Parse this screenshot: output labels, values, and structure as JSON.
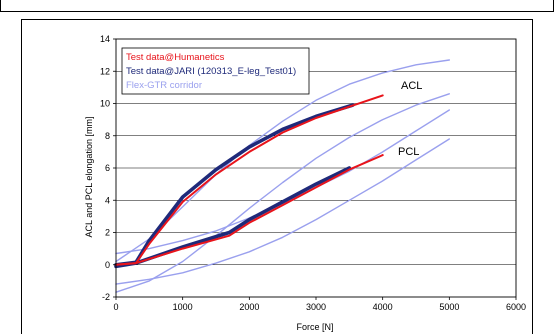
{
  "chart_data": {
    "type": "line",
    "title": "",
    "xlabel": "Force [N]",
    "ylabel": "ACL and PCL elongation [mm]",
    "xlim": [
      0,
      6000
    ],
    "ylim": [
      -2,
      14
    ],
    "xticks": [
      "0",
      "1000",
      "2000",
      "3000",
      "4000",
      "5000",
      "6000"
    ],
    "yticks": [
      "-2",
      "0",
      "2",
      "4",
      "6",
      "8",
      "10",
      "12",
      "14"
    ],
    "grid": "horizontal",
    "legend_position": "top-left",
    "legend": {
      "humanetics": "Test data@Humanetics",
      "jari": "Test data@JARI (120313_E-leg_Test01)",
      "corridor": "Flex-GTR corridor"
    },
    "annotations": {
      "acl": "ACL",
      "pcl": "PCL"
    },
    "colors": {
      "humanetics": "#e8141b",
      "jari": "#1f2a7a",
      "corridor": "#9aa0ee"
    },
    "series": [
      {
        "key": "acl_corridor_upper",
        "group": "corridor",
        "x": [
          0,
          500,
          1000,
          1500,
          2000,
          2500,
          3000,
          3500,
          4000,
          4500,
          5000
        ],
        "y": [
          0.2,
          1.6,
          3.6,
          5.6,
          7.4,
          8.9,
          10.2,
          11.2,
          11.9,
          12.4,
          12.7
        ]
      },
      {
        "key": "acl_corridor_lower",
        "group": "corridor",
        "x": [
          0,
          500,
          1000,
          1500,
          2000,
          2500,
          3000,
          3500,
          4000,
          4500,
          5000
        ],
        "y": [
          -1.7,
          -1.0,
          0.2,
          1.8,
          3.5,
          5.1,
          6.6,
          7.9,
          9.0,
          9.9,
          10.6
        ]
      },
      {
        "key": "pcl_corridor_upper",
        "group": "corridor",
        "x": [
          0,
          500,
          1000,
          1500,
          2000,
          2500,
          3000,
          3500,
          4000,
          4500,
          5000
        ],
        "y": [
          0.7,
          1.0,
          1.5,
          2.1,
          2.9,
          3.8,
          4.8,
          5.8,
          7.0,
          8.3,
          9.6
        ]
      },
      {
        "key": "pcl_corridor_lower",
        "group": "corridor",
        "x": [
          0,
          500,
          1000,
          1500,
          2000,
          2500,
          3000,
          3500,
          4000,
          4500,
          5000
        ],
        "y": [
          -1.2,
          -0.9,
          -0.5,
          0.1,
          0.8,
          1.7,
          2.8,
          4.0,
          5.2,
          6.5,
          7.8
        ]
      },
      {
        "key": "acl_humanetics",
        "group": "humanetics",
        "x": [
          0,
          300,
          500,
          1000,
          1500,
          2000,
          2500,
          3000,
          3500,
          4000
        ],
        "y": [
          0,
          0.1,
          1.3,
          3.9,
          5.6,
          7.0,
          8.2,
          9.1,
          9.8,
          10.5
        ]
      },
      {
        "key": "acl_jari",
        "group": "jari",
        "x": [
          0,
          300,
          500,
          1000,
          1500,
          2000,
          2500,
          3000,
          3550
        ],
        "y": [
          0,
          0.15,
          1.5,
          4.2,
          5.9,
          7.3,
          8.4,
          9.2,
          9.9
        ]
      },
      {
        "key": "pcl_humanetics",
        "group": "humanetics",
        "x": [
          0,
          300,
          1000,
          1700,
          2000,
          2500,
          3000,
          3500,
          4000
        ],
        "y": [
          0,
          0.1,
          1.0,
          1.8,
          2.6,
          3.7,
          4.8,
          5.9,
          6.8
        ]
      },
      {
        "key": "pcl_jari",
        "group": "jari",
        "x": [
          0,
          300,
          1000,
          1700,
          2000,
          2500,
          3000,
          3500
        ],
        "y": [
          -0.1,
          0.1,
          1.1,
          2.0,
          2.8,
          3.9,
          5.0,
          6.0
        ]
      }
    ]
  }
}
